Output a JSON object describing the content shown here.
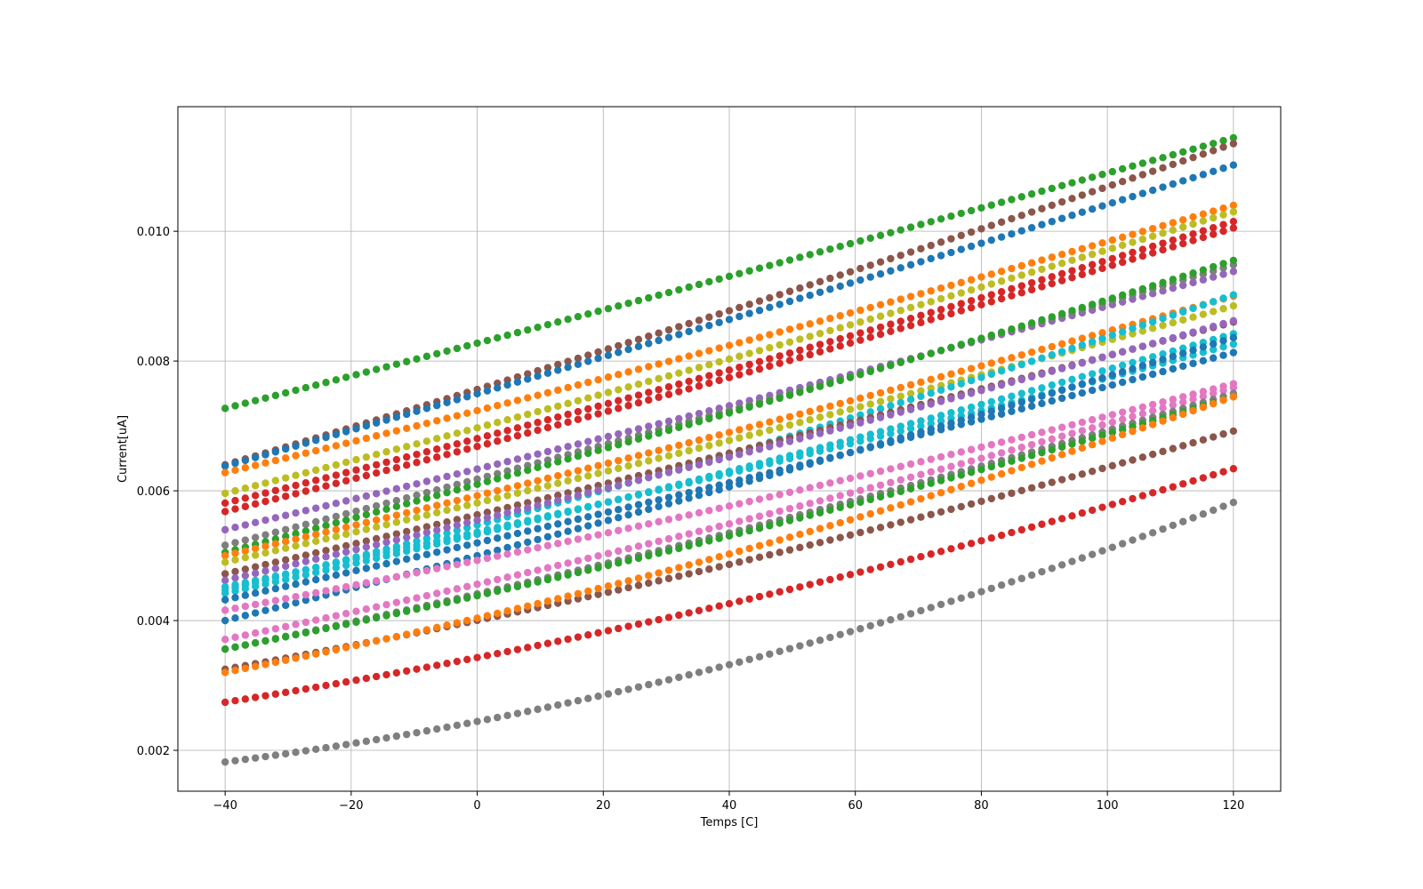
{
  "chart_data": {
    "type": "scatter",
    "title": "",
    "xlabel": "Temps [C]",
    "ylabel": "Current[uA]",
    "xlim": [
      -47.5,
      127.5
    ],
    "ylim": [
      0.00137,
      0.01192
    ],
    "xticks": [
      -40,
      -20,
      0,
      20,
      40,
      60,
      80,
      100,
      120
    ],
    "xtick_labels": [
      "−40",
      "−20",
      "0",
      "20",
      "40",
      "60",
      "80",
      "100",
      "120"
    ],
    "yticks": [
      0.002,
      0.004,
      0.006,
      0.008,
      0.01
    ],
    "ytick_labels": [
      "0.002",
      "0.004",
      "0.006",
      "0.008",
      "0.010"
    ],
    "grid": true,
    "legend": "none",
    "marker": "circle",
    "x_start": -40,
    "x_end": 120,
    "x_step": 1.6,
    "series": [
      {
        "color": "#2ca02c",
        "start": 0.00727,
        "end": 0.01144,
        "curve": 5e-05
      },
      {
        "color": "#8c564b",
        "start": 0.0064,
        "end": 0.01135,
        "curve": 0.0001
      },
      {
        "color": "#1f77b4",
        "start": 0.00638,
        "end": 0.01102,
        "curve": 6e-05
      },
      {
        "color": "#ff7f0e",
        "start": 0.00628,
        "end": 0.0104,
        "curve": 0.0001
      },
      {
        "color": "#bcbd22",
        "start": 0.00596,
        "end": 0.0103,
        "curve": 0.0001
      },
      {
        "color": "#d62728",
        "start": 0.00581,
        "end": 0.01015,
        "curve": 0.00012
      },
      {
        "color": "#d62728",
        "start": 0.00568,
        "end": 0.01005,
        "curve": 0.00012
      },
      {
        "color": "#9467bd",
        "start": 0.0054,
        "end": 0.00938,
        "curve": 8e-05
      },
      {
        "color": "#7f7f7f",
        "start": 0.00516,
        "end": 0.00948,
        "curve": 8e-05
      },
      {
        "color": "#2ca02c",
        "start": 0.00505,
        "end": 0.00955,
        "curve": 0.0001
      },
      {
        "color": "#ff7f0e",
        "start": 0.005,
        "end": 0.009,
        "curve": 0.0001
      },
      {
        "color": "#bcbd22",
        "start": 0.0049,
        "end": 0.00885,
        "curve": 0.0001
      },
      {
        "color": "#17becf",
        "start": 0.00447,
        "end": 0.00902,
        "curve": 0.00018
      },
      {
        "color": "#8c564b",
        "start": 0.00472,
        "end": 0.0086,
        "curve": 8e-05
      },
      {
        "color": "#9467bd",
        "start": 0.00462,
        "end": 0.00862,
        "curve": 0.0001
      },
      {
        "color": "#17becf",
        "start": 0.00442,
        "end": 0.00842,
        "curve": 0.00012
      },
      {
        "color": "#17becf",
        "start": 0.00452,
        "end": 0.00826,
        "curve": 0.00012
      },
      {
        "color": "#1f77b4",
        "start": 0.00432,
        "end": 0.00813,
        "curve": 0.0001
      },
      {
        "color": "#1f77b4",
        "start": 0.004,
        "end": 0.00836,
        "curve": 0.00012
      },
      {
        "color": "#e377c2",
        "start": 0.00416,
        "end": 0.00765,
        "curve": 0.00014
      },
      {
        "color": "#e377c2",
        "start": 0.00371,
        "end": 0.00759,
        "curve": 0.00016
      },
      {
        "color": "#7f7f7f",
        "start": 0.00356,
        "end": 0.0075,
        "curve": 0.00018
      },
      {
        "color": "#2ca02c",
        "start": 0.00356,
        "end": 0.00745,
        "curve": 0.0002
      },
      {
        "color": "#8c564b",
        "start": 0.00325,
        "end": 0.00692,
        "curve": 0.00022
      },
      {
        "color": "#ff7f0e",
        "start": 0.0032,
        "end": 0.00745,
        "curve": 0.0003
      },
      {
        "color": "#d62728",
        "start": 0.00274,
        "end": 0.00634,
        "curve": 0.00028
      },
      {
        "color": "#7f7f7f",
        "start": 0.00182,
        "end": 0.00582,
        "curve": 0.0005
      }
    ]
  }
}
